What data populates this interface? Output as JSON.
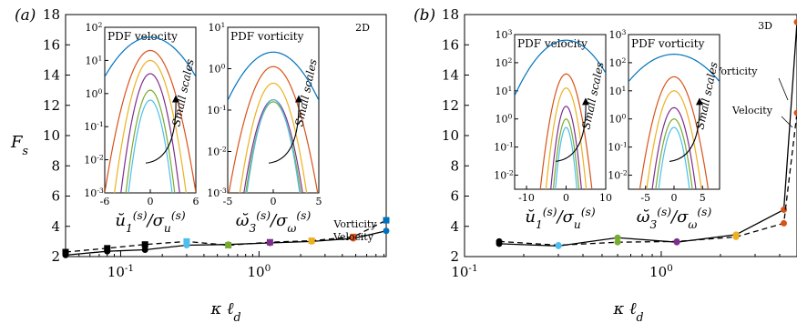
{
  "figure": {
    "panel_labels": [
      "(a)",
      "(b)"
    ],
    "ylabel": "F_s",
    "xlabel": "κ ℓ_d"
  },
  "colors": [
    "#0072BD",
    "#D95319",
    "#EDB120",
    "#7E2F8E",
    "#77AC30",
    "#4DBEEE"
  ],
  "chart_data": [
    {
      "type": "line",
      "panel": "(a)",
      "tag": "2D",
      "xscale": "log",
      "xlim": [
        0.04,
        8.3
      ],
      "ylim": [
        2,
        18
      ],
      "xticks": [
        {
          "v": 0.1,
          "t": "10"
        },
        {
          "v": 1,
          "t": "10"
        }
      ],
      "xtick_exp": [
        "-1",
        "0"
      ],
      "yticks": [
        2,
        4,
        6,
        8,
        10,
        12,
        14,
        16,
        18
      ],
      "series": [
        {
          "name": "Vorticity",
          "dash": false,
          "marker": "circle",
          "x": [
            0.04,
            0.08,
            0.15,
            0.3,
            0.6,
            1.2,
            2.4,
            4.8,
            8.3
          ],
          "y": [
            2.1,
            2.35,
            2.45,
            2.75,
            2.8,
            2.9,
            3.0,
            3.2,
            3.7
          ]
        },
        {
          "name": "Velocity",
          "dash": true,
          "marker": "square",
          "x": [
            0.04,
            0.08,
            0.15,
            0.3,
            0.6,
            1.2,
            2.4,
            4.8,
            8.3
          ],
          "y": [
            2.3,
            2.55,
            2.8,
            3.0,
            2.75,
            2.95,
            3.05,
            3.3,
            4.4
          ]
        }
      ],
      "marker_colors": [
        "#000000",
        "#000000",
        "#000000",
        "#4DBEEE",
        "#77AC30",
        "#7E2F8E",
        "#EDB120",
        "#D95319",
        "#0072BD"
      ],
      "curve_labels": [
        "Vorticity",
        "Velocity"
      ],
      "insets": [
        {
          "title": "PDF velocity",
          "xlabel": "ŭ_1^(s)/σ_u^(s)",
          "xlim": [
            -6,
            6
          ],
          "xticks": [
            -6,
            0,
            6
          ],
          "ydec": [
            -3,
            2
          ],
          "arrow_label": "Small scales",
          "sigmas": [
            1.9,
            1.35,
            1.1,
            0.95,
            0.85,
            0.8
          ],
          "peaks": [
            1.7,
            1.3,
            1.0,
            0.6,
            0.1,
            -0.2
          ]
        },
        {
          "title": "PDF vorticity",
          "xlabel": "ω̆_3^(s)/σ_ω^(s)",
          "xlim": [
            -5,
            5
          ],
          "xticks": [
            -5,
            0,
            5
          ],
          "ydec": [
            -3,
            1
          ],
          "arrow_label": "Small scales",
          "sigmas": [
            1.6,
            1.3,
            1.05,
            1.0,
            0.95,
            0.9
          ],
          "peaks": [
            0.4,
            0.05,
            -0.35,
            -0.75,
            -0.8,
            -0.75
          ]
        }
      ]
    },
    {
      "type": "line",
      "panel": "(b)",
      "tag": "3D",
      "xscale": "log",
      "xlim": [
        0.1,
        4.9
      ],
      "ylim": [
        2,
        18
      ],
      "xticks": [
        {
          "v": 0.1,
          "t": "10"
        },
        {
          "v": 1,
          "t": "10"
        }
      ],
      "xtick_exp": [
        "-1",
        "0"
      ],
      "yticks": [
        2,
        4,
        6,
        8,
        10,
        12,
        14,
        16,
        18
      ],
      "series": [
        {
          "name": "Vorticity",
          "dash": false,
          "marker": "circle",
          "x": [
            0.15,
            0.3,
            0.6,
            1.2,
            2.4,
            4.2,
            4.9
          ],
          "y": [
            2.85,
            2.7,
            3.25,
            2.95,
            3.45,
            5.1,
            17.5
          ]
        },
        {
          "name": "Velocity",
          "dash": true,
          "marker": "circle",
          "x": [
            0.15,
            0.3,
            0.6,
            1.2,
            2.4,
            4.2,
            4.9
          ],
          "y": [
            3.0,
            2.75,
            2.95,
            3.0,
            3.3,
            4.2,
            11.5
          ]
        }
      ],
      "marker_colors": [
        "#000000",
        "#4DBEEE",
        "#77AC30",
        "#7E2F8E",
        "#EDB120",
        "#D95319",
        "#D95319"
      ],
      "curve_labels": [
        "Vorticity",
        "Velocity"
      ],
      "insets": [
        {
          "title": "PDF velocity",
          "xlabel": "ŭ_1^(s)/σ_u^(s)",
          "xlim": [
            -13,
            10
          ],
          "xticks": [
            -10,
            0,
            10
          ],
          "ydec": [
            -2.5,
            3
          ],
          "arrow_label": "Small scales",
          "sigmas": [
            3.2,
            1.5,
            1.25,
            1.05,
            0.95,
            0.85
          ],
          "peaks": [
            2.8,
            1.6,
            1.1,
            0.45,
            0.0,
            -0.3
          ]
        },
        {
          "title": "PDF vorticity",
          "xlabel": "ω̆_3^(s)/σ_ω^(s)",
          "xlim": [
            -8,
            8
          ],
          "xticks": [
            -5,
            0,
            5
          ],
          "ydec": [
            -2.5,
            3
          ],
          "arrow_label": "Small scales",
          "sigmas": [
            2.8,
            1.4,
            1.2,
            1.05,
            0.95,
            0.85
          ],
          "peaks": [
            2.3,
            1.5,
            1.0,
            0.4,
            0.0,
            -0.3
          ]
        }
      ]
    }
  ]
}
